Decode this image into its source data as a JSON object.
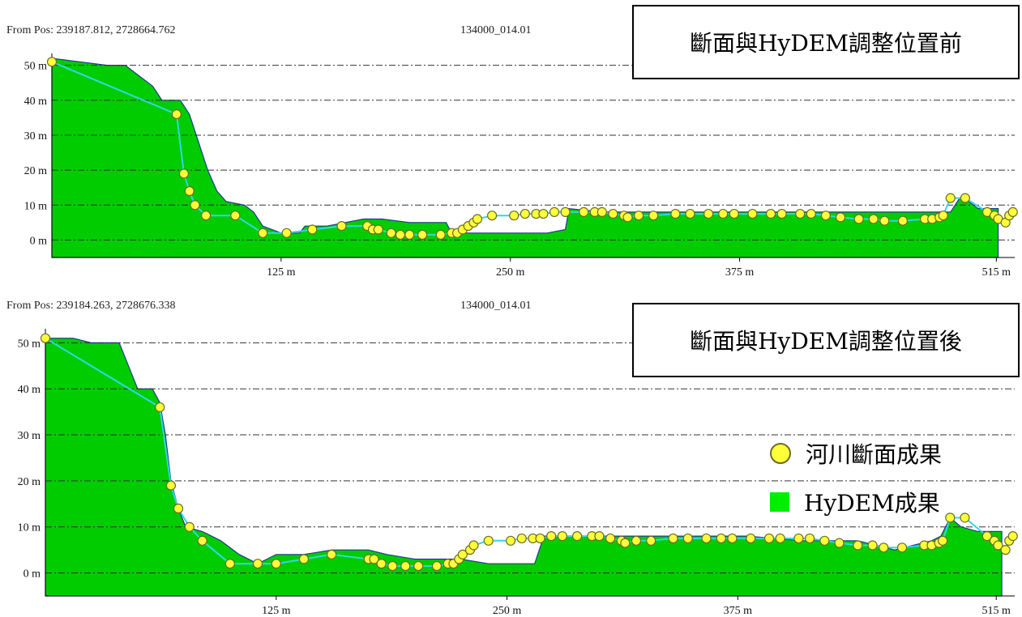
{
  "panels": [
    {
      "from_pos": "From Pos: 239187.812, 2728664.762",
      "section_id": "134000_014.01",
      "note": "斷面與HyDEM調整位置前"
    },
    {
      "from_pos": "From Pos: 239184.263, 2728676.338",
      "section_id": "134000_014.01",
      "note": "斷面與HyDEM調整位置後"
    }
  ],
  "legend": {
    "survey_label": "河川斷面成果",
    "dem_label": "HyDEM成果"
  },
  "colors": {
    "dem": "#00cc00",
    "dem_edge": "#1f3a8a",
    "survey_line": "#33d6e6",
    "point_fill": "#ffff3a",
    "point_edge": "#6b6b28",
    "grid": "#333333"
  },
  "chart_data": [
    {
      "type": "area",
      "ylim": [
        -5,
        52
      ],
      "xlim": [
        0,
        525
      ],
      "yticks": [
        0,
        10,
        20,
        30,
        40,
        50
      ],
      "ytick_labels": [
        "0 m",
        "10 m",
        "20 m",
        "30 m",
        "40 m",
        "50 m"
      ],
      "xticks": [
        125,
        250,
        375,
        515
      ],
      "xtick_labels": [
        "125 m",
        "250 m",
        "375 m",
        "515 m"
      ],
      "grid": "dash-dot horizontal",
      "dem_profile": [
        [
          0,
          52
        ],
        [
          15,
          51
        ],
        [
          30,
          50
        ],
        [
          40,
          50
        ],
        [
          55,
          44
        ],
        [
          60,
          40
        ],
        [
          70,
          40
        ],
        [
          75,
          36
        ],
        [
          80,
          28
        ],
        [
          85,
          20
        ],
        [
          90,
          14
        ],
        [
          95,
          11
        ],
        [
          105,
          10
        ],
        [
          110,
          8
        ],
        [
          115,
          4
        ],
        [
          125,
          2
        ],
        [
          135,
          2
        ],
        [
          138,
          4
        ],
        [
          150,
          4
        ],
        [
          160,
          5
        ],
        [
          170,
          6
        ],
        [
          180,
          6
        ],
        [
          195,
          5
        ],
        [
          215,
          5
        ],
        [
          218,
          2
        ],
        [
          225,
          2
        ],
        [
          250,
          2
        ],
        [
          270,
          2
        ],
        [
          280,
          3
        ],
        [
          282,
          9
        ],
        [
          300,
          8
        ],
        [
          340,
          8
        ],
        [
          380,
          8
        ],
        [
          420,
          8
        ],
        [
          460,
          8
        ],
        [
          480,
          8
        ],
        [
          490,
          8
        ],
        [
          495,
          12
        ],
        [
          500,
          11
        ],
        [
          505,
          9
        ],
        [
          510,
          9
        ],
        [
          516,
          9
        ],
        [
          516,
          -5
        ],
        [
          0,
          -5
        ]
      ],
      "survey_x": [
        0,
        68,
        72,
        75,
        78,
        84,
        100,
        115,
        128,
        142,
        158,
        172,
        175,
        178,
        185,
        190,
        195,
        202,
        212,
        218,
        221,
        224,
        227,
        230,
        232,
        240,
        252,
        258,
        264,
        268,
        274,
        280,
        290,
        296,
        300,
        306,
        312,
        314,
        320,
        328,
        340,
        348,
        358,
        366,
        372,
        382,
        392,
        398,
        408,
        414,
        422,
        430,
        440,
        448,
        454,
        464,
        476,
        480,
        484,
        486,
        490,
        498,
        510,
        514,
        516,
        520,
        522,
        524
      ],
      "survey_y": [
        51,
        36,
        19,
        14,
        10,
        7,
        7,
        2,
        2,
        3,
        4,
        4,
        3,
        3,
        2,
        1.5,
        1.5,
        1.5,
        1.5,
        2,
        2,
        3,
        4,
        5,
        6,
        7,
        7,
        7.5,
        7.5,
        7.5,
        8,
        8,
        8,
        8,
        8,
        7.5,
        7,
        6.5,
        7,
        7,
        7.5,
        7.5,
        7.5,
        7.5,
        7.5,
        7.5,
        7.5,
        7.5,
        7.5,
        7.5,
        7,
        6.5,
        6,
        6,
        5.5,
        5.5,
        6,
        6,
        6.5,
        7,
        12,
        12,
        8,
        7,
        6,
        5,
        7,
        8
      ]
    },
    {
      "type": "area",
      "ylim": [
        -5,
        52
      ],
      "xlim": [
        0,
        525
      ],
      "yticks": [
        0,
        10,
        20,
        30,
        40,
        50
      ],
      "ytick_labels": [
        "0 m",
        "10 m",
        "20 m",
        "30 m",
        "40 m",
        "50 m"
      ],
      "xticks": [
        125,
        250,
        375,
        515
      ],
      "xtick_labels": [
        "125 m",
        "250 m",
        "375 m",
        "515 m"
      ],
      "grid": "dash-dot horizontal",
      "dem_profile": [
        [
          0,
          51
        ],
        [
          15,
          51
        ],
        [
          25,
          50
        ],
        [
          40,
          50
        ],
        [
          45,
          45
        ],
        [
          50,
          40
        ],
        [
          58,
          40
        ],
        [
          62,
          37
        ],
        [
          65,
          30
        ],
        [
          68,
          20
        ],
        [
          72,
          14
        ],
        [
          76,
          10
        ],
        [
          85,
          9
        ],
        [
          95,
          7
        ],
        [
          105,
          4
        ],
        [
          115,
          2
        ],
        [
          120,
          3
        ],
        [
          125,
          4
        ],
        [
          140,
          4
        ],
        [
          155,
          5
        ],
        [
          165,
          5
        ],
        [
          175,
          5
        ],
        [
          185,
          4
        ],
        [
          200,
          3
        ],
        [
          215,
          3
        ],
        [
          225,
          3
        ],
        [
          240,
          2
        ],
        [
          255,
          2
        ],
        [
          265,
          2
        ],
        [
          270,
          8
        ],
        [
          290,
          8
        ],
        [
          320,
          8
        ],
        [
          350,
          8
        ],
        [
          380,
          8
        ],
        [
          410,
          7
        ],
        [
          440,
          7
        ],
        [
          460,
          5
        ],
        [
          470,
          6
        ],
        [
          480,
          7
        ],
        [
          485,
          8
        ],
        [
          490,
          12
        ],
        [
          496,
          10
        ],
        [
          505,
          9
        ],
        [
          518,
          9
        ],
        [
          518,
          -5
        ],
        [
          0,
          -5
        ]
      ],
      "survey_x": [
        0,
        62,
        68,
        72,
        78,
        85,
        100,
        115,
        125,
        140,
        155,
        175,
        178,
        182,
        188,
        195,
        202,
        212,
        218,
        221,
        224,
        226,
        230,
        232,
        240,
        252,
        258,
        264,
        268,
        274,
        280,
        288,
        296,
        300,
        306,
        312,
        314,
        320,
        328,
        340,
        348,
        358,
        366,
        372,
        382,
        392,
        398,
        408,
        414,
        422,
        430,
        440,
        448,
        454,
        464,
        476,
        480,
        484,
        486,
        490,
        498,
        510,
        514,
        516,
        520,
        522,
        524
      ],
      "survey_y": [
        51,
        36,
        19,
        14,
        10,
        7,
        2,
        2,
        2,
        3,
        4,
        3,
        3,
        2,
        1.5,
        1.5,
        1.5,
        1.5,
        2,
        2,
        3,
        4,
        5,
        6,
        7,
        7,
        7.5,
        7.5,
        7.5,
        8,
        8,
        8,
        8,
        8,
        7.5,
        7,
        6.5,
        7,
        7,
        7.5,
        7.5,
        7.5,
        7.5,
        7.5,
        7.5,
        7.5,
        7.5,
        7.5,
        7.5,
        7,
        6.5,
        6,
        6,
        5.5,
        5.5,
        6,
        6,
        6.5,
        7,
        12,
        12,
        8,
        7,
        6,
        5,
        7,
        8
      ]
    }
  ]
}
